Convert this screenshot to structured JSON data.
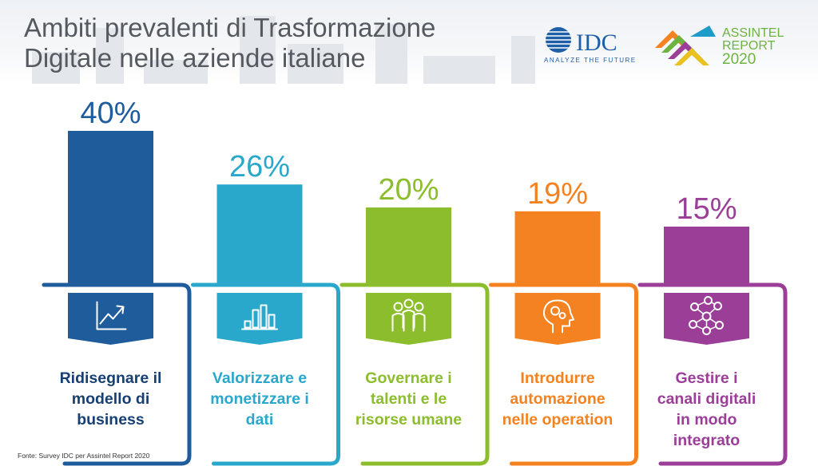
{
  "title_lines": [
    "Ambiti prevalenti di Trasformazione",
    "Digitale nelle aziende italiane"
  ],
  "logos": {
    "idc": {
      "name": "IDC",
      "tagline": "ANALYZE THE FUTURE",
      "color": "#1f5fa8"
    },
    "assintel": {
      "lines": [
        "ASSINTEL",
        "REPORT",
        "2020"
      ],
      "color": "#6db33f"
    }
  },
  "source": "Fonte: Survey IDC per Assintel Report 2020",
  "chart_data": {
    "type": "bar",
    "title": "",
    "xlabel": "",
    "ylabel": "",
    "ylim": [
      0,
      40
    ],
    "unit": "%",
    "categories": [
      [
        "Ridisegnare il",
        "modello di",
        "business"
      ],
      [
        "Valorizzare e",
        "monetizzare i",
        "dati"
      ],
      [
        "Governare i",
        "talenti e le",
        "risorse umane"
      ],
      [
        "Introdurre",
        "automazione",
        "nelle operation"
      ],
      [
        "Gestire i",
        "canali digitali",
        "in modo",
        "integrato"
      ]
    ],
    "values": [
      40,
      26,
      20,
      19,
      15
    ],
    "labels": [
      "40%",
      "26%",
      "20%",
      "19%",
      "15%"
    ],
    "colors": [
      "#1f5c9c",
      "#2aa8cc",
      "#8cbd2c",
      "#f58220",
      "#9a3e98"
    ],
    "label_colors": [
      "#1f5c9c",
      "#2aa8cc",
      "#8cbd2c",
      "#f58220",
      "#9a3e98"
    ],
    "text_colors": [
      "#173f73",
      "#2aa8cc",
      "#8cbd2c",
      "#f58220",
      "#9a3e98"
    ],
    "icons": [
      "trend-chart-icon",
      "bar-chart-icon",
      "people-group-icon",
      "head-gears-icon",
      "network-icon"
    ]
  }
}
